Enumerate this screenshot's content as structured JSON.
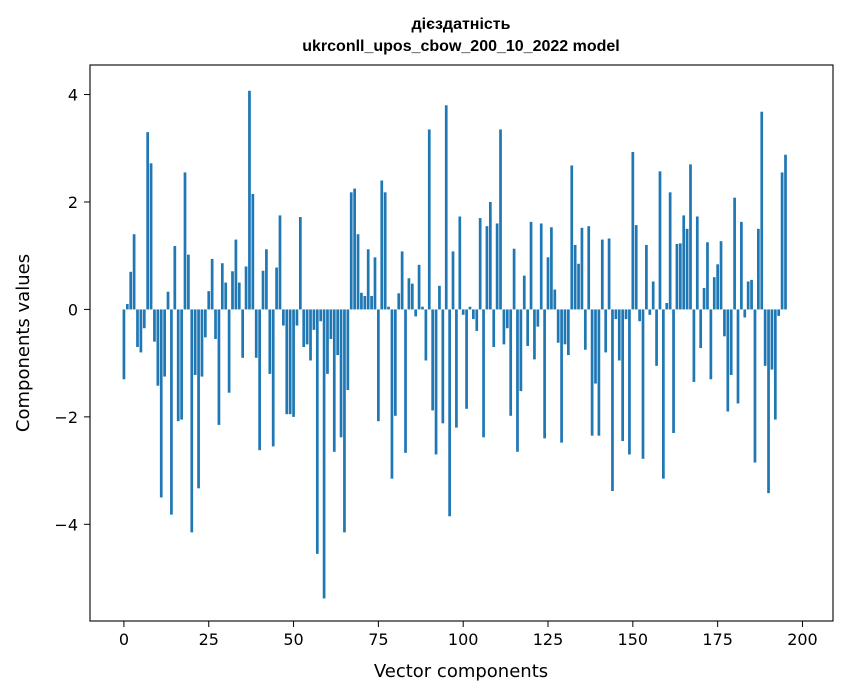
{
  "chart_data": {
    "type": "bar",
    "title": "дієздатність",
    "subtitle": "ukrconll_upos_cbow_200_10_2022 model",
    "xlabel": "Vector components",
    "ylabel": "Components values",
    "xlim": [
      -10,
      209
    ],
    "ylim": [
      -5.8,
      4.55
    ],
    "xticks": [
      0,
      25,
      50,
      75,
      100,
      125,
      150,
      175,
      200
    ],
    "yticks": [
      -4,
      -2,
      0,
      2,
      4
    ],
    "bar_color": "#1f77b4",
    "values": [
      -1.3,
      0.1,
      0.7,
      1.4,
      -0.7,
      -0.8,
      -0.35,
      3.3,
      2.72,
      -0.6,
      -1.42,
      -3.5,
      -1.25,
      0.33,
      -3.82,
      1.18,
      -2.08,
      -2.05,
      2.55,
      1.02,
      -4.15,
      -1.22,
      -3.33,
      -1.25,
      -0.52,
      0.34,
      0.94,
      -0.55,
      -2.15,
      0.86,
      0.5,
      -1.55,
      0.71,
      1.3,
      0.5,
      -0.9,
      0.8,
      4.07,
      2.15,
      -0.9,
      -2.62,
      0.72,
      1.12,
      -1.2,
      -2.55,
      0.78,
      1.75,
      -0.3,
      -1.95,
      -1.95,
      -2.0,
      -0.3,
      1.72,
      -0.7,
      -0.65,
      -0.95,
      -0.38,
      -4.55,
      -0.22,
      -5.38,
      -1.2,
      -0.55,
      -2.65,
      -0.85,
      -2.38,
      -4.15,
      -1.5,
      2.18,
      2.25,
      1.4,
      0.31,
      0.25,
      1.12,
      0.25,
      0.97,
      -2.08,
      2.4,
      2.18,
      0.05,
      -3.15,
      -1.98,
      0.3,
      1.08,
      -2.67,
      0.58,
      0.48,
      -0.13,
      0.83,
      0.05,
      -0.95,
      3.35,
      -1.88,
      -2.7,
      0.44,
      -2.12,
      3.8,
      -3.85,
      1.08,
      -2.2,
      1.73,
      -0.1,
      -1.85,
      0.05,
      -0.18,
      -0.4,
      1.7,
      -2.38,
      1.55,
      2.0,
      -0.7,
      1.6,
      3.35,
      -0.65,
      -0.35,
      -1.98,
      1.13,
      -2.65,
      -1.52,
      0.63,
      -0.68,
      1.63,
      -0.93,
      -0.32,
      1.6,
      -2.4,
      0.97,
      1.53,
      0.37,
      -0.62,
      -2.48,
      -0.65,
      -0.85,
      2.68,
      1.2,
      0.85,
      1.52,
      -0.75,
      1.55,
      -2.35,
      -1.38,
      -2.35,
      1.3,
      -0.8,
      1.32,
      -3.38,
      -0.18,
      -0.95,
      -2.45,
      -0.18,
      -2.7,
      2.93,
      1.57,
      -0.22,
      -2.78,
      1.2,
      -0.1,
      0.52,
      -1.05,
      2.57,
      -3.15,
      0.12,
      2.18,
      -2.3,
      1.22,
      1.23,
      1.75,
      1.5,
      2.7,
      -1.35,
      1.73,
      -0.72,
      0.4,
      1.25,
      -1.3,
      0.6,
      0.84,
      1.27,
      -0.5,
      -1.9,
      -1.22,
      2.08,
      -1.75,
      1.63,
      -0.15,
      0.52,
      0.55,
      -2.85,
      1.5,
      3.68,
      -1.05,
      -3.42,
      -1.12,
      -2.05,
      -0.12,
      2.55,
      2.88
    ]
  }
}
